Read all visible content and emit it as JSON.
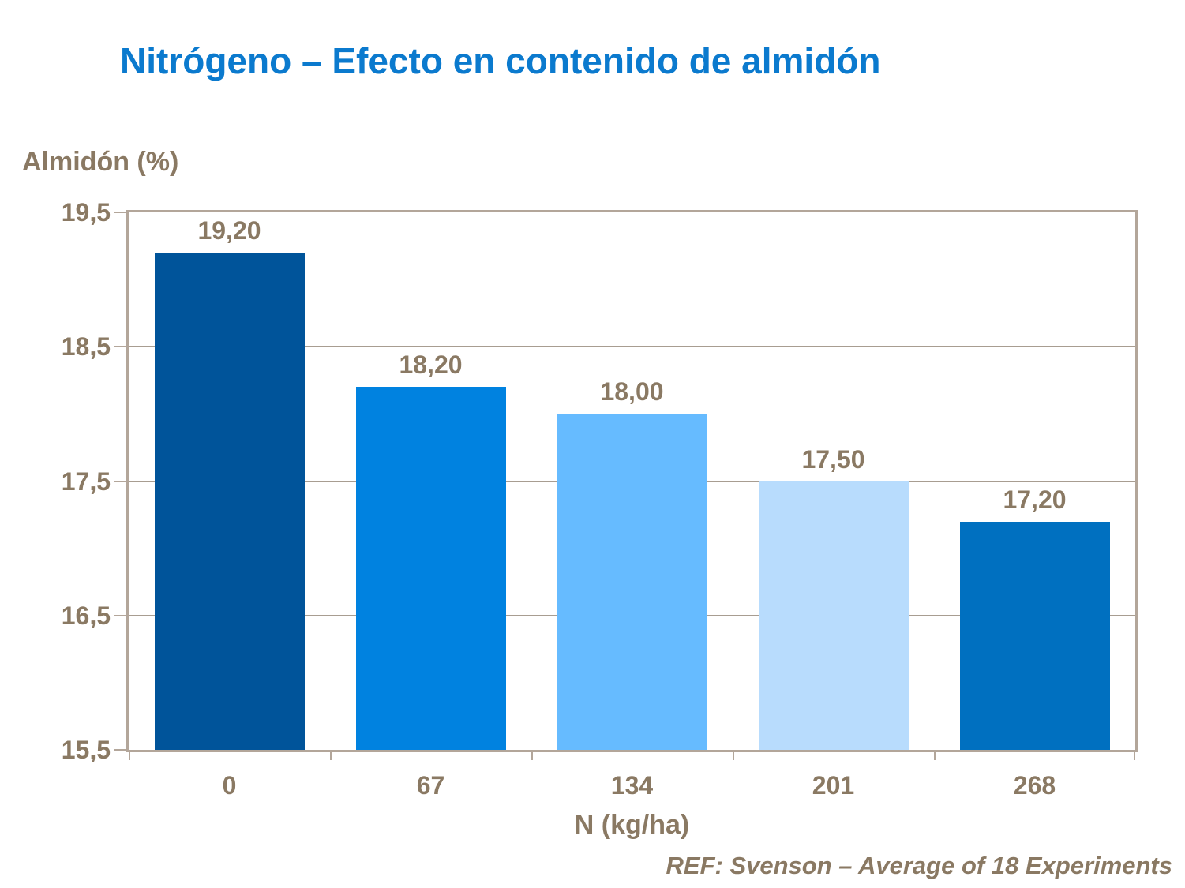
{
  "page": {
    "title": "Nitrógeno – Efecto en contenido de almidón",
    "reference": "REF: Svenson – Average of 18 Experiments"
  },
  "colors": {
    "title_blue": "#0b7ace",
    "text_brown": "#8a7963",
    "axis_border": "#b3a69a",
    "gridline": "#a89d91",
    "background": "#ffffff"
  },
  "chart_data": {
    "type": "bar",
    "title": "Nitrógeno – Efecto en contenido de almidón",
    "ylabel": "Almidón (%)",
    "xlabel": "N (kg/ha)",
    "categories": [
      "0",
      "67",
      "134",
      "201",
      "268"
    ],
    "values": [
      19.2,
      18.2,
      18.0,
      17.5,
      17.2
    ],
    "value_labels": [
      "19,20",
      "18,20",
      "18,00",
      "17,50",
      "17,20"
    ],
    "yticks": [
      19.5,
      18.5,
      17.5,
      16.5,
      15.5
    ],
    "ytick_labels": [
      "19,5",
      "18,5",
      "17,5",
      "16,5",
      "15,5"
    ],
    "ylim": [
      15.5,
      19.5
    ],
    "grid": true,
    "legend": false,
    "bar_colors": [
      "#00549a",
      "#0082e0",
      "#66bbff",
      "#b8dcfd",
      "#0070c0"
    ],
    "annotation": "REF: Svenson – Average of 18 Experiments"
  }
}
